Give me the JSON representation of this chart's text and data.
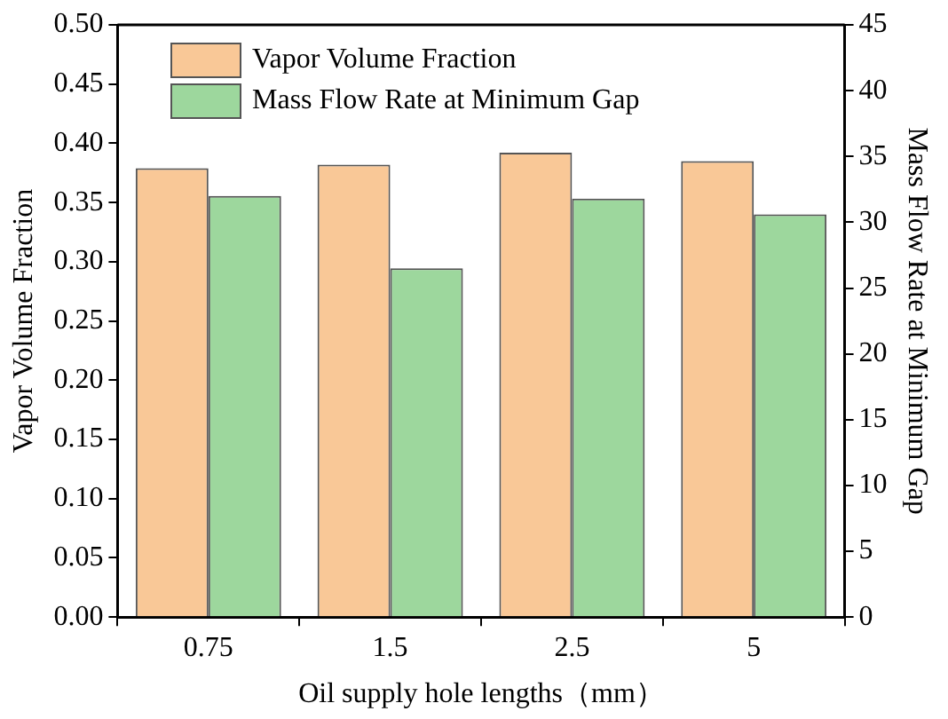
{
  "chart_data": {
    "type": "bar",
    "xlabel": "Oil supply hole lengths（mm）",
    "ylabel": "Vapor Volume Fraction",
    "y2label": "Mass Flow Rate at Minimum Gap",
    "categories": [
      "0.75",
      "1.5",
      "2.5",
      "5"
    ],
    "series": [
      {
        "name": "Vapor Volume Fraction",
        "color": "#f9c897",
        "values": [
          0.379,
          0.382,
          0.392,
          0.385
        ]
      },
      {
        "name": "Mass Flow Rate at Minimum Gap",
        "color": "#9dd79d",
        "values": [
          32.0,
          26.5,
          31.8,
          30.6
        ],
        "axis": "y2"
      }
    ],
    "ylim": [
      0,
      0.5
    ],
    "yticks": [
      {
        "value": 0,
        "label": "0.00"
      },
      {
        "value": 0.05,
        "label": "0.05"
      },
      {
        "value": 0.1,
        "label": "0.10"
      },
      {
        "value": 0.15,
        "label": "0.15"
      },
      {
        "value": 0.2,
        "label": "0.20"
      },
      {
        "value": 0.25,
        "label": "0.25"
      },
      {
        "value": 0.3,
        "label": "0.30"
      },
      {
        "value": 0.35,
        "label": "0.35"
      },
      {
        "value": 0.4,
        "label": "0.40"
      },
      {
        "value": 0.45,
        "label": "0.45"
      },
      {
        "value": 0.5,
        "label": "0.50"
      }
    ],
    "y2lim": [
      0,
      45
    ],
    "y2ticks": [
      0,
      5,
      10,
      15,
      20,
      25,
      30,
      35,
      40,
      45
    ],
    "legend": "top left",
    "grid": false
  }
}
